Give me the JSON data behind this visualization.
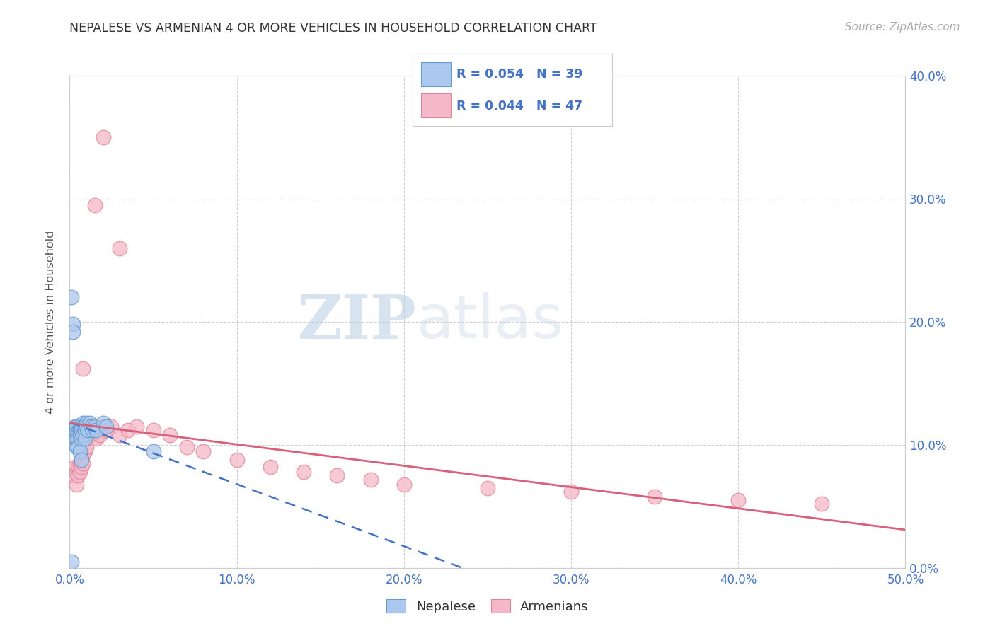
{
  "title": "NEPALESE VS ARMENIAN 4 OR MORE VEHICLES IN HOUSEHOLD CORRELATION CHART",
  "source": "Source: ZipAtlas.com",
  "ylabel": "4 or more Vehicles in Household",
  "watermark_zip": "ZIP",
  "watermark_atlas": "atlas",
  "xlim": [
    0.0,
    0.5
  ],
  "ylim": [
    0.0,
    0.4
  ],
  "xticks": [
    0.0,
    0.1,
    0.2,
    0.3,
    0.4,
    0.5
  ],
  "yticks": [
    0.0,
    0.1,
    0.2,
    0.3,
    0.4
  ],
  "xtick_labels": [
    "0.0%",
    "10.0%",
    "20.0%",
    "30.0%",
    "40.0%",
    "50.0%"
  ],
  "ytick_labels": [
    "0.0%",
    "10.0%",
    "20.0%",
    "30.0%",
    "40.0%"
  ],
  "nepalese_R": "0.054",
  "nepalese_N": "39",
  "armenian_R": "0.044",
  "armenian_N": "47",
  "nepalese_color": "#adc8ee",
  "armenian_color": "#f5b8c8",
  "nepalese_edge_color": "#6699cc",
  "armenian_edge_color": "#dd8899",
  "nepalese_line_color": "#4472c4",
  "armenian_line_color": "#d9607a",
  "background_color": "#ffffff",
  "grid_color": "#cccccc",
  "nepalese_x": [
    0.001,
    0.002,
    0.002,
    0.003,
    0.003,
    0.003,
    0.004,
    0.004,
    0.004,
    0.004,
    0.005,
    0.005,
    0.005,
    0.005,
    0.006,
    0.006,
    0.006,
    0.006,
    0.007,
    0.007,
    0.007,
    0.008,
    0.008,
    0.008,
    0.009,
    0.009,
    0.01,
    0.01,
    0.011,
    0.012,
    0.013,
    0.014,
    0.015,
    0.016,
    0.02,
    0.022,
    0.05,
    0.007,
    0.001
  ],
  "nepalese_y": [
    0.22,
    0.198,
    0.192,
    0.115,
    0.112,
    0.105,
    0.115,
    0.11,
    0.105,
    0.098,
    0.11,
    0.108,
    0.105,
    0.098,
    0.115,
    0.112,
    0.108,
    0.095,
    0.115,
    0.112,
    0.105,
    0.118,
    0.115,
    0.108,
    0.112,
    0.105,
    0.118,
    0.115,
    0.112,
    0.118,
    0.115,
    0.112,
    0.115,
    0.112,
    0.118,
    0.115,
    0.095,
    0.088,
    0.005
  ],
  "armenian_x": [
    0.002,
    0.003,
    0.004,
    0.004,
    0.005,
    0.005,
    0.006,
    0.006,
    0.007,
    0.007,
    0.008,
    0.008,
    0.009,
    0.01,
    0.01,
    0.011,
    0.012,
    0.013,
    0.014,
    0.015,
    0.016,
    0.018,
    0.02,
    0.022,
    0.025,
    0.03,
    0.035,
    0.04,
    0.05,
    0.06,
    0.07,
    0.08,
    0.1,
    0.12,
    0.14,
    0.16,
    0.18,
    0.2,
    0.25,
    0.3,
    0.35,
    0.4,
    0.45,
    0.008,
    0.015,
    0.02,
    0.03
  ],
  "armenian_y": [
    0.075,
    0.082,
    0.068,
    0.078,
    0.082,
    0.075,
    0.085,
    0.078,
    0.088,
    0.082,
    0.092,
    0.085,
    0.095,
    0.105,
    0.098,
    0.108,
    0.115,
    0.108,
    0.112,
    0.115,
    0.105,
    0.108,
    0.115,
    0.112,
    0.115,
    0.108,
    0.112,
    0.115,
    0.112,
    0.108,
    0.098,
    0.095,
    0.088,
    0.082,
    0.078,
    0.075,
    0.072,
    0.068,
    0.065,
    0.062,
    0.058,
    0.055,
    0.052,
    0.162,
    0.295,
    0.35,
    0.26
  ]
}
